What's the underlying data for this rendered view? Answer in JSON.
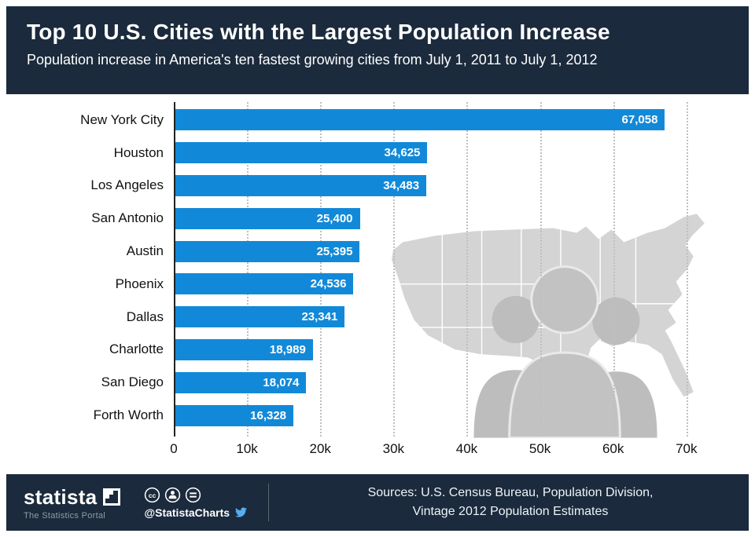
{
  "header": {
    "title": "Top 10 U.S. Cities with the Largest Population Increase",
    "subtitle": "Population increase in America's ten fastest growing cities from July 1, 2011 to July 1, 2012"
  },
  "chart_data": {
    "type": "bar",
    "orientation": "horizontal",
    "title": "Top 10 U.S. Cities with the Largest Population Increase",
    "categories": [
      "New York City",
      "Houston",
      "Los Angeles",
      "San Antonio",
      "Austin",
      "Phoenix",
      "Dallas",
      "Charlotte",
      "San Diego",
      "Forth Worth"
    ],
    "values": [
      67058,
      34625,
      34483,
      25400,
      25395,
      24536,
      23341,
      18989,
      18074,
      16328
    ],
    "value_labels": [
      "67,058",
      "34,625",
      "34,483",
      "25,400",
      "25,395",
      "24,536",
      "23,341",
      "18,989",
      "18,074",
      "16,328"
    ],
    "x_ticks": [
      "0",
      "10k",
      "20k",
      "30k",
      "40k",
      "50k",
      "60k",
      "70k"
    ],
    "x_tick_values": [
      0,
      10000,
      20000,
      30000,
      40000,
      50000,
      60000,
      70000
    ],
    "xlim": [
      0,
      70000
    ],
    "xlabel": "",
    "ylabel": "",
    "grid": "vertical-dotted",
    "legend": "none",
    "bar_color": "#1289d8"
  },
  "footer": {
    "brand": "statista",
    "tagline": "The Statistics Portal",
    "handle": "@StatistaCharts",
    "sources_line1": "Sources: U.S. Census Bureau, Population Division,",
    "sources_line2": "Vintage 2012 Population Estimates",
    "license_icons": [
      "cc-icon",
      "attribution-person-icon",
      "no-derivatives-equals-icon"
    ]
  },
  "colors": {
    "header_bg": "#1b2a3c",
    "footer_bg": "#1b2a3c",
    "bar": "#1289d8",
    "grid": "#bfbfbf",
    "twitter": "#55acee",
    "map_watermark": "#d4d4d4",
    "silhouette": "#bdbdbd"
  }
}
